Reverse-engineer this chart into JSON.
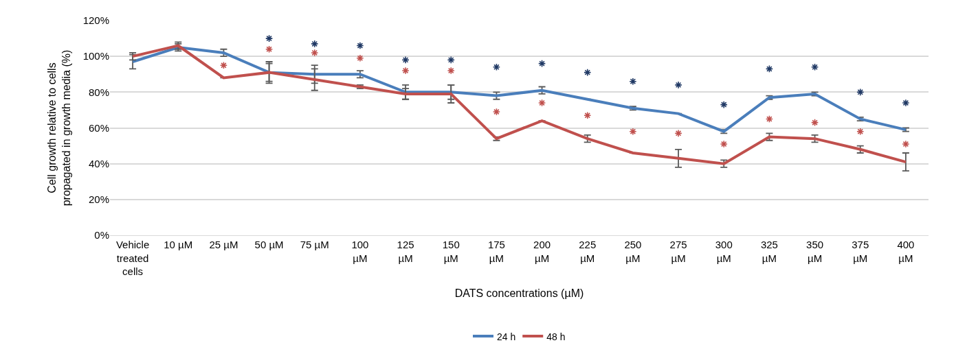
{
  "chart_data": {
    "type": "line",
    "xlabel": "DATS concentrations (µM)",
    "ylabel": "Cell growth relative to cells propagated in growth media (%)",
    "categories": [
      "Vehicle treated cells",
      "10 µM",
      "25 µM",
      "50 µM",
      "75 µM",
      "100 µM",
      "125 µM",
      "150 µM",
      "175 µM",
      "200 µM",
      "225 µM",
      "250 µM",
      "275 µM",
      "300 µM",
      "325 µM",
      "350 µM",
      "375 µM",
      "400 µM"
    ],
    "series": [
      {
        "name": "24 h",
        "color": "#4a7ebb",
        "values": [
          97,
          105,
          102,
          91,
          90,
          90,
          80,
          80,
          78,
          81,
          76,
          71,
          68,
          58,
          77,
          79,
          65,
          59
        ],
        "errors": [
          4,
          2,
          2,
          6,
          5,
          2,
          4,
          4,
          2,
          2,
          null,
          1,
          null,
          1,
          1,
          1,
          1,
          1
        ]
      },
      {
        "name": "48 h",
        "color": "#c0504d",
        "values": [
          100,
          106,
          88,
          91,
          87,
          83,
          79,
          79,
          54,
          64,
          54,
          46,
          43,
          40,
          55,
          54,
          48,
          41
        ],
        "errors": [
          2,
          2,
          null,
          5,
          6,
          1,
          3,
          5,
          1,
          null,
          2,
          null,
          5,
          2,
          2,
          2,
          2,
          5
        ]
      },
      {
        "type": "scatter",
        "marker": "cross",
        "color": "#1f3864",
        "values": [
          null,
          null,
          null,
          110,
          107,
          106,
          98,
          98,
          94,
          96,
          91,
          86,
          84,
          73,
          93,
          94,
          80,
          74
        ]
      },
      {
        "type": "scatter",
        "marker": "cross",
        "color": "#c0504d",
        "values": [
          null,
          null,
          95,
          104,
          102,
          99,
          92,
          92,
          69,
          74,
          67,
          58,
          57,
          51,
          65,
          63,
          58,
          51
        ]
      }
    ],
    "ylim": [
      0,
      120
    ],
    "yticks": [
      {
        "value": 0,
        "label": "0%"
      },
      {
        "value": 20,
        "label": "20%"
      },
      {
        "value": 40,
        "label": "40%"
      },
      {
        "value": 60,
        "label": "60%"
      },
      {
        "value": 80,
        "label": "80%"
      },
      {
        "value": 100,
        "label": "100%"
      },
      {
        "value": 120,
        "label": "120%"
      }
    ],
    "grid": "y",
    "legend": "bottom",
    "marker": "none",
    "line_style": "solid"
  }
}
